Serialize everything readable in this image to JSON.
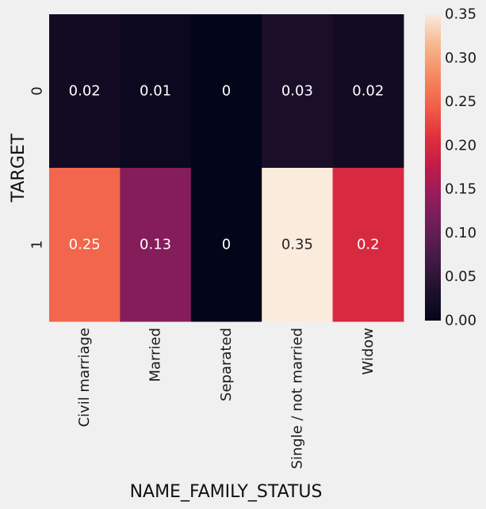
{
  "chart_data": {
    "type": "heatmap",
    "title": "",
    "xlabel": "NAME_FAMILY_STATUS",
    "ylabel": "TARGET",
    "x_categories": [
      "Civil marriage",
      "Married",
      "Separated",
      "Single / not married",
      "Widow"
    ],
    "y_categories": [
      "0",
      "1"
    ],
    "values": [
      [
        0.02,
        0.01,
        0,
        0.03,
        0.02
      ],
      [
        0.25,
        0.13,
        0,
        0.35,
        0.2
      ]
    ],
    "value_labels": [
      [
        "0.02",
        "0.01",
        "0",
        "0.03",
        "0.02"
      ],
      [
        "0.25",
        "0.13",
        "0",
        "0.35",
        "0.2"
      ]
    ],
    "colorbar": {
      "range": [
        0,
        0.35
      ],
      "ticks": [
        0.0,
        0.05,
        0.1,
        0.15,
        0.2,
        0.25,
        0.3,
        0.35
      ],
      "tick_labels": [
        "0.00",
        "0.05",
        "0.10",
        "0.15",
        "0.20",
        "0.25",
        "0.30",
        "0.35"
      ],
      "colormap": "rocket"
    },
    "grid": false
  }
}
